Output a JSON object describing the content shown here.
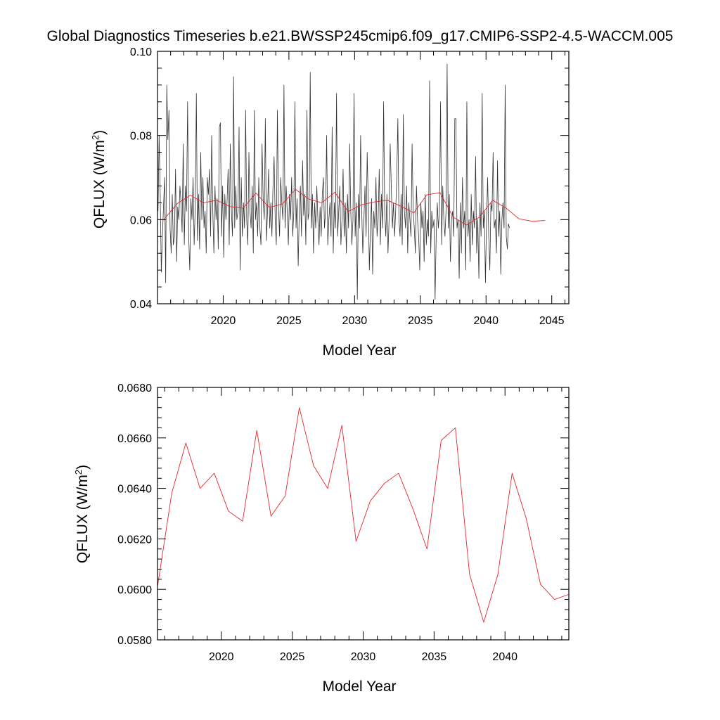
{
  "title": "Global Diagnostics Timeseries b.e21.BWSSP245cmip6.f09_g17.CMIP6-SSP2-4.5-WACCM.005",
  "colors": {
    "monthly": "#333333",
    "annual": "#e8262b",
    "frame": "#000000"
  },
  "chart_data": [
    {
      "type": "line",
      "name": "monthly-and-annual",
      "xlabel": "Model Year",
      "ylabel": "QFLUX (W/m",
      "ylabel_sup": "2",
      "ylabel_close": ")",
      "xlim": [
        2015.0,
        2046.3
      ],
      "ylim": [
        0.04,
        0.1
      ],
      "xticks": [
        2020,
        2025,
        2030,
        2035,
        2040,
        2045
      ],
      "xtick_labels": [
        "2020",
        "2025",
        "2030",
        "2035",
        "2040",
        "2045"
      ],
      "yticks": [
        0.04,
        0.06,
        0.08,
        0.1
      ],
      "ytick_labels": [
        "0.04",
        "0.06",
        "0.08",
        "0.10"
      ],
      "series": [
        {
          "name": "monthly",
          "color": "#333333",
          "x_start": 2015.04,
          "x_step": 0.08333,
          "values": [
            0.062,
            0.08,
            0.066,
            0.0475,
            0.056,
            0.063,
            0.07,
            0.045,
            0.092,
            0.079,
            0.086,
            0.058,
            0.052,
            0.066,
            0.054,
            0.056,
            0.072,
            0.05,
            0.063,
            0.06,
            0.068,
            0.064,
            0.057,
            0.078,
            0.054,
            0.068,
            0.062,
            0.088,
            0.056,
            0.048,
            0.065,
            0.06,
            0.07,
            0.054,
            0.063,
            0.09,
            0.055,
            0.066,
            0.053,
            0.076,
            0.06,
            0.07,
            0.058,
            0.062,
            0.052,
            0.07,
            0.066,
            0.072,
            0.056,
            0.08,
            0.062,
            0.052,
            0.068,
            0.06,
            0.065,
            0.053,
            0.082,
            0.083,
            0.056,
            0.068,
            0.051,
            0.066,
            0.06,
            0.064,
            0.072,
            0.054,
            0.078,
            0.062,
            0.056,
            0.094,
            0.058,
            0.068,
            0.06,
            0.062,
            0.082,
            0.048,
            0.07,
            0.056,
            0.064,
            0.058,
            0.086,
            0.06,
            0.054,
            0.076,
            0.062,
            0.058,
            0.068,
            0.052,
            0.086,
            0.06,
            0.064,
            0.056,
            0.07,
            0.058,
            0.054,
            0.078,
            0.065,
            0.06,
            0.084,
            0.055,
            0.062,
            0.072,
            0.058,
            0.064,
            0.056,
            0.068,
            0.075,
            0.06,
            0.054,
            0.086,
            0.063,
            0.056,
            0.07,
            0.064,
            0.06,
            0.092,
            0.058,
            0.068,
            0.062,
            0.054,
            0.066,
            0.06,
            0.07,
            0.056,
            0.062,
            0.088,
            0.058,
            0.065,
            0.049,
            0.062,
            0.068,
            0.056,
            0.074,
            0.061,
            0.066,
            0.054,
            0.086,
            0.06,
            0.062,
            0.095,
            0.058,
            0.066,
            0.052,
            0.064,
            0.058,
            0.068,
            0.06,
            0.054,
            0.063,
            0.056,
            0.066,
            0.07,
            0.058,
            0.062,
            0.08,
            0.054,
            0.06,
            0.064,
            0.056,
            0.082,
            0.052,
            0.064,
            0.058,
            0.09,
            0.056,
            0.062,
            0.068,
            0.054,
            0.06,
            0.072,
            0.056,
            0.064,
            0.052,
            0.066,
            0.058,
            0.078,
            0.062,
            0.054,
            0.06,
            0.09,
            0.056,
            0.064,
            0.041,
            0.066,
            0.058,
            0.08,
            0.062,
            0.052,
            0.06,
            0.068,
            0.056,
            0.076,
            0.064,
            0.048,
            0.058,
            0.065,
            0.047,
            0.062,
            0.058,
            0.07,
            0.056,
            0.06,
            0.072,
            0.054,
            0.066,
            0.058,
            0.088,
            0.062,
            0.056,
            0.066,
            0.052,
            0.06,
            0.078,
            0.068,
            0.058,
            0.064,
            0.056,
            0.062,
            0.07,
            0.084,
            0.06,
            0.056,
            0.066,
            0.054,
            0.085,
            0.062,
            0.058,
            0.068,
            0.052,
            0.064,
            0.06,
            0.056,
            0.078,
            0.062,
            0.058,
            0.052,
            0.068,
            0.06,
            0.056,
            0.048,
            0.064,
            0.058,
            0.062,
            0.05,
            0.066,
            0.054,
            0.06,
            0.056,
            0.093,
            0.052,
            0.062,
            0.058,
            0.06,
            0.041,
            0.056,
            0.064,
            0.058,
            0.062,
            0.088,
            0.054,
            0.068,
            0.06,
            0.056,
            0.062,
            0.097,
            0.058,
            0.066,
            0.05,
            0.06,
            0.062,
            0.056,
            0.084,
            0.084,
            0.058,
            0.06,
            0.046,
            0.064,
            0.052,
            0.07,
            0.058,
            0.062,
            0.048,
            0.088,
            0.056,
            0.06,
            0.05,
            0.066,
            0.054,
            0.062,
            0.058,
            0.075,
            0.052,
            0.06,
            0.046,
            0.064,
            0.056,
            0.09,
            0.058,
            0.062,
            0.045,
            0.06,
            0.07,
            0.056,
            0.048,
            0.064,
            0.062,
            0.076,
            0.058,
            0.06,
            0.052,
            0.074,
            0.056,
            0.062,
            0.047,
            0.06,
            0.064,
            0.058,
            0.092,
            0.056,
            0.053,
            0.059,
            0.058
          ]
        },
        {
          "name": "annual",
          "color": "#e8262b",
          "x": [
            2015.5,
            2016.5,
            2017.5,
            2018.5,
            2019.5,
            2020.5,
            2021.5,
            2022.5,
            2023.5,
            2024.5,
            2025.5,
            2026.5,
            2027.5,
            2028.5,
            2029.5,
            2030.5,
            2031.5,
            2032.5,
            2033.5,
            2034.5,
            2035.5,
            2036.5,
            2037.5,
            2038.5,
            2039.5,
            2040.5,
            2041.5,
            2042.5,
            2043.5,
            2044.5
          ],
          "values": [
            0.0601,
            0.0638,
            0.0658,
            0.064,
            0.0646,
            0.0631,
            0.0627,
            0.0663,
            0.0629,
            0.0637,
            0.0672,
            0.0649,
            0.064,
            0.0665,
            0.0619,
            0.0635,
            0.0642,
            0.0646,
            0.0632,
            0.0616,
            0.0659,
            0.0664,
            0.0606,
            0.0587,
            0.0606,
            0.0646,
            0.0628,
            0.0602,
            0.0596,
            0.0598
          ]
        }
      ]
    },
    {
      "type": "line",
      "name": "annual-only",
      "xlabel": "Model Year",
      "ylabel": "QFLUX (W/m",
      "ylabel_sup": "2",
      "ylabel_close": ")",
      "xlim": [
        2015.5,
        2044.5
      ],
      "ylim": [
        0.058,
        0.068
      ],
      "xticks": [
        2020,
        2025,
        2030,
        2035,
        2040
      ],
      "xtick_labels": [
        "2020",
        "2025",
        "2030",
        "2035",
        "2040"
      ],
      "yticks": [
        0.058,
        0.06,
        0.062,
        0.064,
        0.066,
        0.068
      ],
      "ytick_labels": [
        "0.0580",
        "0.0600",
        "0.0620",
        "0.0640",
        "0.0660",
        "0.0680"
      ],
      "series": [
        {
          "name": "annual",
          "color": "#e8262b",
          "x": [
            2015.5,
            2016.5,
            2017.5,
            2018.5,
            2019.5,
            2020.5,
            2021.5,
            2022.5,
            2023.5,
            2024.5,
            2025.5,
            2026.5,
            2027.5,
            2028.5,
            2029.5,
            2030.5,
            2031.5,
            2032.5,
            2033.5,
            2034.5,
            2035.5,
            2036.5,
            2037.5,
            2038.5,
            2039.5,
            2040.5,
            2041.5,
            2042.5,
            2043.5,
            2044.5
          ],
          "values": [
            0.0601,
            0.0638,
            0.0658,
            0.064,
            0.0646,
            0.0631,
            0.0627,
            0.0663,
            0.0629,
            0.0637,
            0.0672,
            0.0649,
            0.064,
            0.0665,
            0.0619,
            0.0635,
            0.0642,
            0.0646,
            0.0632,
            0.0616,
            0.0659,
            0.0664,
            0.0606,
            0.0587,
            0.0606,
            0.0646,
            0.0628,
            0.0602,
            0.0596,
            0.0598
          ]
        }
      ]
    }
  ]
}
